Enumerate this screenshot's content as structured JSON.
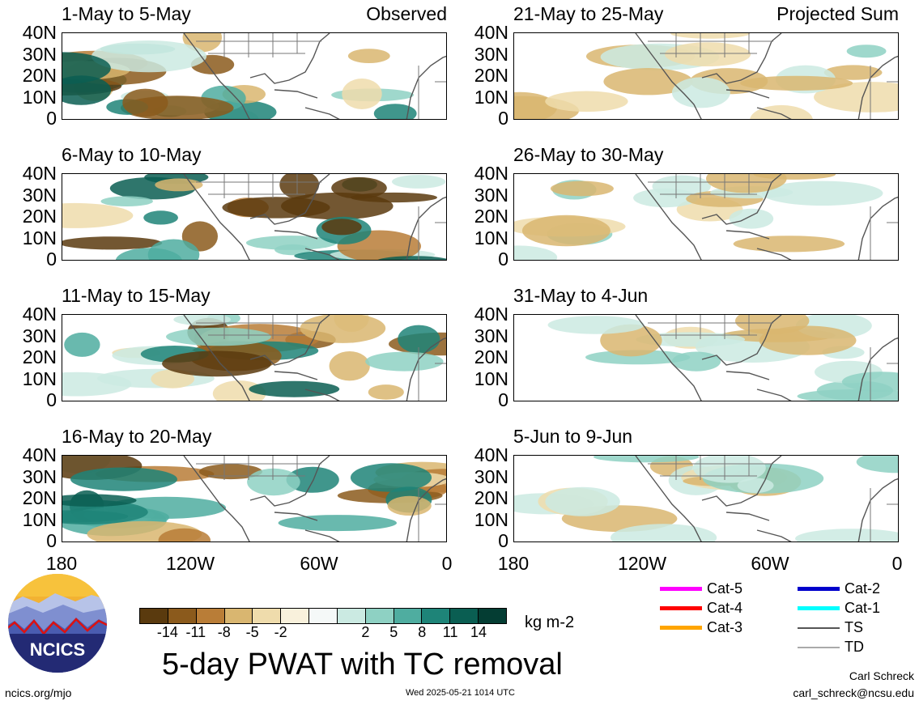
{
  "panels": [
    {
      "title": "1-May to 5-May",
      "tag": "Observed"
    },
    {
      "title": "21-May to 25-May",
      "tag": "Projected Sum"
    },
    {
      "title": "6-May to 10-May",
      "tag": ""
    },
    {
      "title": "26-May to 30-May",
      "tag": ""
    },
    {
      "title": "11-May to 15-May",
      "tag": ""
    },
    {
      "title": "31-May to 4-Jun",
      "tag": ""
    },
    {
      "title": "16-May to 20-May",
      "tag": ""
    },
    {
      "title": "5-Jun to 9-Jun",
      "tag": ""
    }
  ],
  "lat_labels": [
    "40N",
    "30N",
    "20N",
    "10N",
    "0"
  ],
  "lon_labels": [
    "180",
    "120W",
    "60W",
    "0"
  ],
  "colorbar": {
    "colors": [
      "#5a3a0e",
      "#8b5a1c",
      "#b97d37",
      "#d9b670",
      "#efdcac",
      "#f9f1dc",
      "#f5f9f8",
      "#cbeae2",
      "#8ed1c3",
      "#4fada0",
      "#1e8478",
      "#0a5e52",
      "#043d33"
    ],
    "labels": [
      "-14",
      "-11",
      "-8",
      "-5",
      "-2",
      "2",
      "5",
      "8",
      "11",
      "14"
    ],
    "units": "kg m-2"
  },
  "title": "5-day PWAT with TC removal",
  "legend": [
    {
      "label": "Cat-5",
      "color": "#ff00ff"
    },
    {
      "label": "Cat-4",
      "color": "#ff0000"
    },
    {
      "label": "Cat-3",
      "color": "#ffa500"
    },
    {
      "label": "Cat-2",
      "color": "#0000cc"
    },
    {
      "label": "Cat-1",
      "color": "#00ffff"
    },
    {
      "label": "TS",
      "color": "#555555"
    },
    {
      "label": "TD",
      "color": "#aaaaaa"
    }
  ],
  "logo_text": "NCICS",
  "footer": {
    "url": "ncics.org/mjo",
    "timestamp": "Wed 2025-05-21 1014 UTC",
    "author": "Carl Schreck",
    "email": "carl_schreck@ncsu.edu"
  }
}
